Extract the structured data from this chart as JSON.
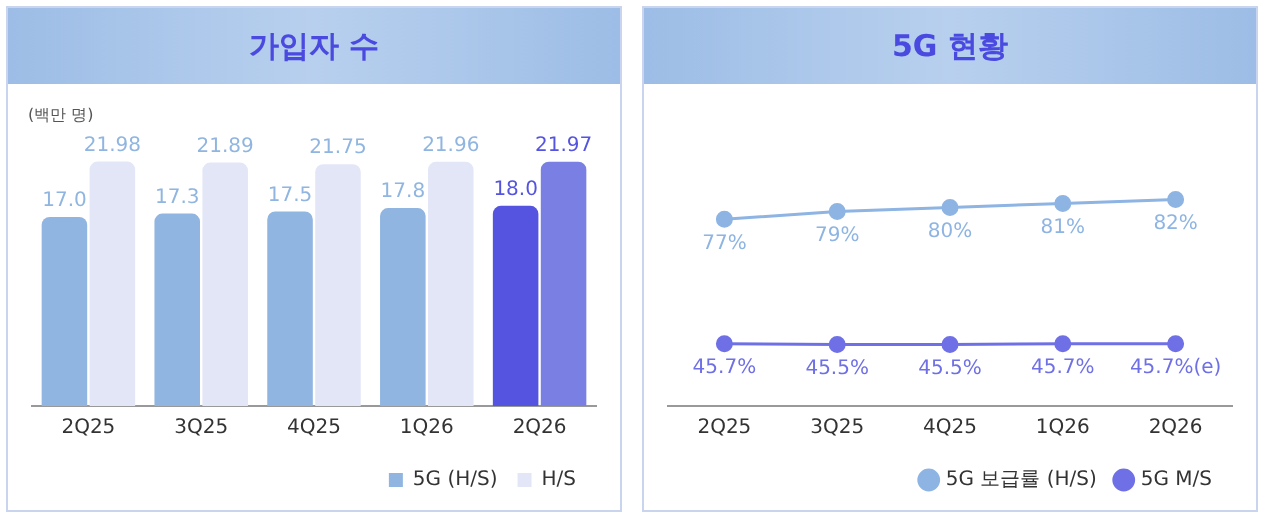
{
  "chart_data": [
    {
      "type": "bar",
      "title": "가입자 수",
      "annotations": [
        "(백만 명)"
      ],
      "categories": [
        "2Q25",
        "3Q25",
        "4Q25",
        "1Q26",
        "2Q26"
      ],
      "series": [
        {
          "name": "5G (H/S)",
          "color": "#5454e0",
          "colors": [
            "#8fb5e0",
            "#8fb5e0",
            "#8fb5e0",
            "#8fb5e0",
            "#5454e0"
          ],
          "values": [
            17.0,
            17.3,
            17.5,
            17.8,
            18.0
          ],
          "value_labels": [
            "17.0",
            "17.3",
            "17.5",
            "17.8",
            "18.0"
          ]
        },
        {
          "name": "H/S",
          "color": "#7a80e3",
          "colors": [
            "#e3e6f7",
            "#e3e6f7",
            "#e3e6f7",
            "#e3e6f7",
            "#7a80e3"
          ],
          "values": [
            21.98,
            21.89,
            21.75,
            21.96,
            21.97
          ],
          "value_labels": [
            "21.98",
            "21.89",
            "21.75",
            "21.96",
            "21.97"
          ]
        }
      ],
      "legend": "bottom right",
      "tick_labels": "x",
      "grid": false
    },
    {
      "type": "line",
      "title": "5G 현황",
      "categories": [
        "2Q25",
        "3Q25",
        "4Q25",
        "1Q26",
        "2Q26"
      ],
      "series": [
        {
          "name": "5G 보급률 (H/S)",
          "color": "#8db4e2",
          "values": [
            77,
            79,
            80,
            81,
            82
          ],
          "value_labels": [
            "77%",
            "79%",
            "80%",
            "81%",
            "82%"
          ]
        },
        {
          "name": "5G M/S",
          "color": "#6f6fe6",
          "values": [
            45.7,
            45.5,
            45.5,
            45.7,
            45.7
          ],
          "value_labels": [
            "45.7%",
            "45.5%",
            "45.5%",
            "45.7%",
            "45.7%(e)"
          ]
        }
      ],
      "legend": "bottom right",
      "tick_labels": "x",
      "grid": false,
      "marker": "circle",
      "line_style": "solid"
    }
  ]
}
